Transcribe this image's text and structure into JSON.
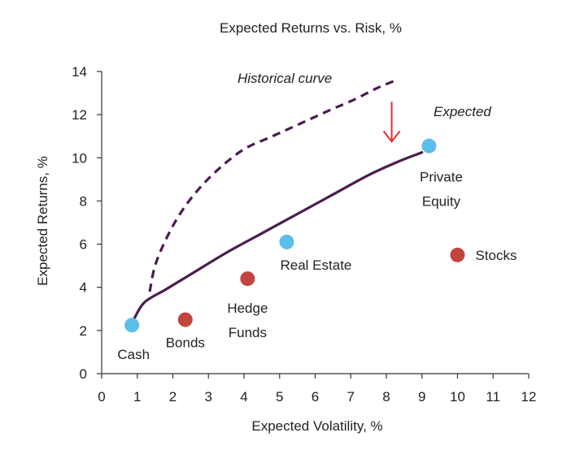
{
  "chart_data": {
    "type": "scatter",
    "title": "Expected Returns vs. Risk, %",
    "xlabel": "Expected Volatility, %",
    "ylabel": "Expected Returns, %",
    "xlim": [
      0,
      12
    ],
    "ylim": [
      0,
      14
    ],
    "xticks": [
      0,
      1,
      2,
      3,
      4,
      5,
      6,
      7,
      8,
      9,
      10,
      11,
      12
    ],
    "yticks": [
      0,
      2,
      4,
      6,
      8,
      10,
      12,
      14
    ],
    "grid": false,
    "colors": {
      "blue_points": "#5bbfe9",
      "red_points": "#c0463f",
      "curves": "#4a1d4f",
      "arrow": "#e03030"
    },
    "points": [
      {
        "label": "Cash",
        "x": 0.85,
        "y": 2.25,
        "color": "#5bbfe9"
      },
      {
        "label": "Bonds",
        "x": 2.35,
        "y": 2.5,
        "color": "#c0463f"
      },
      {
        "label": "Hedge Funds",
        "label_lines": [
          "Hedge",
          "Funds"
        ],
        "x": 4.1,
        "y": 4.4,
        "color": "#c0463f"
      },
      {
        "label": "Real Estate",
        "x": 5.2,
        "y": 6.1,
        "color": "#5bbfe9"
      },
      {
        "label": "Private Equity",
        "label_lines": [
          "Private",
          "Equity"
        ],
        "x": 9.2,
        "y": 10.55,
        "color": "#5bbfe9"
      },
      {
        "label": "Stocks",
        "x": 10.0,
        "y": 5.5,
        "color": "#c0463f"
      }
    ],
    "series": [
      {
        "name": "Historical curve",
        "style": "dashed",
        "x": [
          1.35,
          1.5,
          1.8,
          2.2,
          2.7,
          3.3,
          4.0,
          4.8,
          5.6,
          6.4,
          7.1,
          7.7,
          8.2
        ],
        "y": [
          3.8,
          5.0,
          6.2,
          7.4,
          8.5,
          9.5,
          10.4,
          11.0,
          11.6,
          12.2,
          12.7,
          13.2,
          13.55
        ]
      },
      {
        "name": "Expected",
        "style": "solid",
        "x": [
          0.9,
          1.2,
          1.8,
          2.6,
          3.5,
          4.5,
          5.5,
          6.5,
          7.5,
          8.3,
          9.0
        ],
        "y": [
          2.5,
          3.3,
          3.9,
          4.7,
          5.6,
          6.5,
          7.4,
          8.3,
          9.2,
          9.8,
          10.25
        ]
      }
    ],
    "annotations": {
      "historical_label": "Historical curve",
      "expected_label": "Expected",
      "arrow": {
        "x": 8.15,
        "y_from": 12.6,
        "y_to": 10.75
      }
    }
  }
}
